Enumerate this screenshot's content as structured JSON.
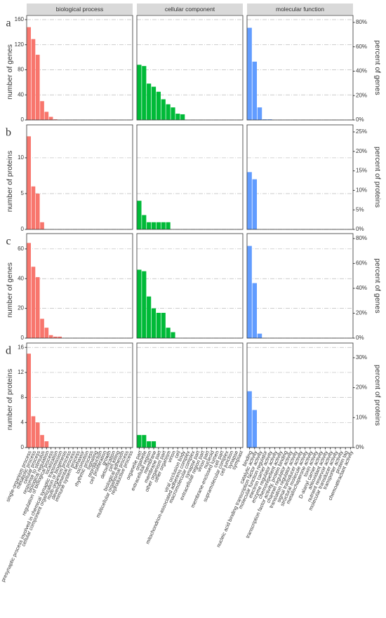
{
  "facets": [
    {
      "name": "biological process",
      "color": "#F8766D",
      "categories": [
        "single-organism process",
        "metabolic process",
        "cellular process",
        "response to stimulus",
        "biological regulation",
        "regulation of biological process",
        "localization",
        "presynaptic process involved in chemical synaptic transmission",
        "cellular component organization or biogenesis",
        "multi-organism process",
        "developmental process",
        "immune system process",
        "behavior",
        "locomotion",
        "rhythmic process",
        "signaling",
        "reproduction",
        "cell proliferation",
        "growth",
        "detoxification",
        "cell killing",
        "biological adhesion",
        "multicellular organismal process",
        "reproductive process"
      ]
    },
    {
      "name": "cellular component",
      "color": "#00BA38",
      "categories": [
        "organelle part",
        "organelle",
        "extracellular region",
        "membrane",
        "membrane part",
        "other organism part",
        "other organism",
        "virion",
        "cell",
        "viral occlusion body",
        "mitochondrion-associated adherens complex",
        "macromolecular complex",
        "synapse part",
        "extracellular region part",
        "virion part",
        "nucleoid",
        "membrane-enclosed lumen",
        "cell part",
        "supramolecular complex",
        "cell junction",
        "synapse",
        "symplast"
      ]
    },
    {
      "name": "molecular function",
      "color": "#619CFF",
      "categories": [
        "binding",
        "catalytic activity",
        "nucleic acid binding transcription factor activity",
        "molecular function regulator",
        "electron carrier activity",
        "enzyme regulator activity",
        "chemorepellent activity",
        "transcription factor activity, protein binding",
        "channel regulator activity",
        "translation regulator activity",
        "signal transducer activity",
        "structural molecule activity",
        "metallochaperone activity",
        "toxin activity",
        "D-alanyl carrier activity",
        "antioxidant activity",
        "nutrient reservoir activity",
        "molecular transducer activity",
        "transporter activity",
        "protein tag",
        "chemoattractant activity"
      ]
    }
  ],
  "chart_data": [
    {
      "type": "bar",
      "label": "a",
      "ylabel": "number of genes",
      "y2label": "percent of genes",
      "ylim": [
        0,
        166.7
      ],
      "yticks": [
        0,
        40,
        80,
        120,
        160
      ],
      "y2lim": [
        0,
        85.7
      ],
      "y2ticks": [
        {
          "value": 0,
          "label": "0%"
        },
        {
          "value": 20,
          "label": "20%"
        },
        {
          "value": 40,
          "label": "40%"
        },
        {
          "value": 60,
          "label": "60%"
        },
        {
          "value": 80,
          "label": "80%"
        }
      ],
      "panels": [
        {
          "values": [
            148,
            129,
            104,
            30,
            13,
            5,
            1,
            0,
            0,
            0,
            0,
            0,
            0,
            0,
            0,
            0,
            0,
            0,
            0,
            0,
            0,
            0,
            0,
            0
          ]
        },
        {
          "values": [
            88,
            86,
            58,
            53,
            45,
            33,
            25,
            20,
            10,
            9,
            0,
            0,
            0,
            0,
            0,
            0,
            0,
            0,
            0,
            0,
            0,
            0
          ]
        },
        {
          "values": [
            147,
            93,
            20,
            1,
            1,
            0,
            0,
            0,
            0,
            0,
            0,
            0,
            0,
            0,
            0,
            0,
            0,
            0,
            0,
            0,
            0
          ]
        }
      ]
    },
    {
      "type": "bar",
      "label": "b",
      "ylabel": "number of proteins",
      "y2label": "percent of proteins",
      "ylim": [
        0,
        14.6
      ],
      "yticks": [
        0,
        5,
        10
      ],
      "y2lim": [
        0,
        26.8
      ],
      "y2ticks": [
        {
          "value": 0,
          "label": "0%"
        },
        {
          "value": 5,
          "label": "5%"
        },
        {
          "value": 10,
          "label": "10%"
        },
        {
          "value": 15,
          "label": "15%"
        },
        {
          "value": 20,
          "label": "20%"
        },
        {
          "value": 25,
          "label": "25%"
        }
      ],
      "panels": [
        {
          "values": [
            13,
            6,
            5,
            1,
            0,
            0,
            0,
            0,
            0,
            0,
            0,
            0,
            0,
            0,
            0,
            0,
            0,
            0,
            0,
            0,
            0,
            0,
            0,
            0
          ]
        },
        {
          "values": [
            4,
            2,
            1,
            1,
            1,
            1,
            1,
            0,
            0,
            0,
            0,
            0,
            0,
            0,
            0,
            0,
            0,
            0,
            0,
            0,
            0,
            0
          ]
        },
        {
          "values": [
            8,
            7,
            0,
            0,
            0,
            0,
            0,
            0,
            0,
            0,
            0,
            0,
            0,
            0,
            0,
            0,
            0,
            0,
            0,
            0,
            0
          ]
        }
      ]
    },
    {
      "type": "bar",
      "label": "c",
      "ylabel": "number of genes",
      "y2label": "percent of genes",
      "ylim": [
        0,
        70.3
      ],
      "yticks": [
        0,
        20,
        40,
        60
      ],
      "y2lim": [
        0,
        84
      ],
      "y2ticks": [
        {
          "value": 0,
          "label": "0%"
        },
        {
          "value": 20,
          "label": "20%"
        },
        {
          "value": 40,
          "label": "40%"
        },
        {
          "value": 60,
          "label": "60%"
        },
        {
          "value": 80,
          "label": "80%"
        }
      ],
      "panels": [
        {
          "values": [
            64,
            48,
            41,
            13,
            7,
            2,
            1,
            1,
            0,
            0,
            0,
            0,
            0,
            0,
            0,
            0,
            0,
            0,
            0,
            0,
            0,
            0,
            0,
            0
          ]
        },
        {
          "values": [
            46,
            45,
            28,
            20,
            17,
            17,
            7,
            4,
            0,
            0,
            0,
            0,
            0,
            0,
            0,
            0,
            0,
            0,
            0,
            0,
            0,
            0
          ]
        },
        {
          "values": [
            62,
            37,
            3,
            0,
            0,
            0,
            0,
            0,
            0,
            0,
            0,
            0,
            0,
            0,
            0,
            0,
            0,
            0,
            0,
            0,
            0
          ]
        }
      ]
    },
    {
      "type": "bar",
      "label": "d",
      "ylabel": "number of proteins",
      "y2label": "percent of proteins",
      "ylim": [
        0,
        16.7
      ],
      "yticks": [
        0,
        4,
        8,
        12,
        16
      ],
      "y2lim": [
        0,
        34.9
      ],
      "y2ticks": [
        {
          "value": 0,
          "label": "0%"
        },
        {
          "value": 10,
          "label": "10%"
        },
        {
          "value": 20,
          "label": "20%"
        },
        {
          "value": 30,
          "label": "30%"
        }
      ],
      "panels": [
        {
          "values": [
            15,
            5,
            4,
            2,
            1,
            0,
            0,
            0,
            0,
            0,
            0,
            0,
            0,
            0,
            0,
            0,
            0,
            0,
            0,
            0,
            0,
            0,
            0,
            0
          ]
        },
        {
          "values": [
            2,
            2,
            1,
            1,
            0,
            0,
            0,
            0,
            0,
            0,
            0,
            0,
            0,
            0,
            0,
            0,
            0,
            0,
            0,
            0,
            0,
            0
          ]
        },
        {
          "values": [
            9,
            6,
            0,
            0,
            0,
            0,
            0,
            0,
            0,
            0,
            0,
            0,
            0,
            0,
            0,
            0,
            0,
            0,
            0,
            0,
            0
          ]
        }
      ]
    }
  ]
}
